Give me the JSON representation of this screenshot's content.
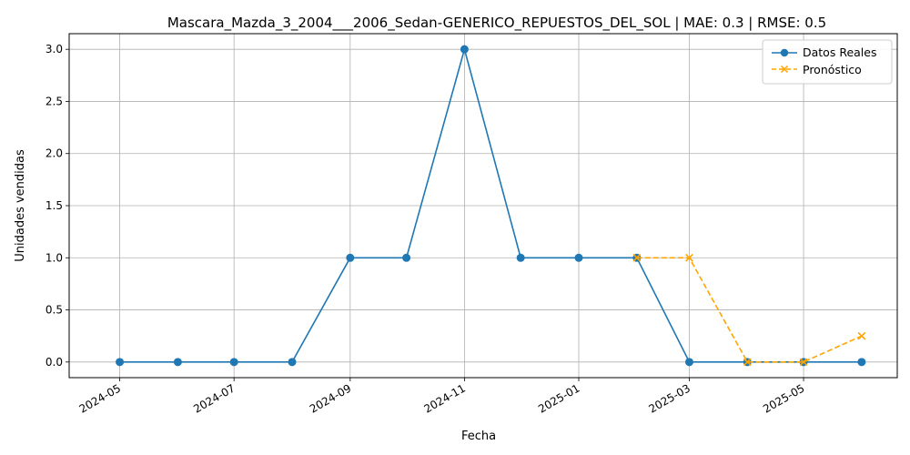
{
  "chart_data": {
    "type": "line",
    "title": "Mascara_Mazda_3_2004___2006_Sedan-GENERICO_REPUESTOS_DEL_SOL | MAE: 0.3 | RMSE: 0.5",
    "xlabel": "Fecha",
    "ylabel": "Unidades vendidas",
    "xlim": [
      "2024-04-04",
      "2025-06-20"
    ],
    "ylim": [
      -0.15,
      3.15
    ],
    "x_ticks": [
      "2024-05",
      "2024-07",
      "2024-09",
      "2024-11",
      "2025-01",
      "2025-03",
      "2025-05"
    ],
    "y_ticks": [
      "0.0",
      "0.5",
      "1.0",
      "1.5",
      "2.0",
      "2.5",
      "3.0"
    ],
    "y_tick_values": [
      0,
      0.5,
      1.0,
      1.5,
      2.0,
      2.5,
      3.0
    ],
    "grid": true,
    "legend_position": "top-right",
    "series": [
      {
        "name": "Datos Reales",
        "color": "#1f77b4",
        "marker": "circle",
        "linestyle": "solid",
        "x": [
          "2024-05-01",
          "2024-06-01",
          "2024-07-01",
          "2024-08-01",
          "2024-09-01",
          "2024-10-01",
          "2024-11-01",
          "2024-12-01",
          "2025-01-01",
          "2025-02-01",
          "2025-03-01",
          "2025-04-01",
          "2025-05-01",
          "2025-06-01"
        ],
        "y": [
          0,
          0,
          0,
          0,
          1,
          1,
          3,
          1,
          1,
          1,
          0,
          0,
          0,
          0
        ]
      },
      {
        "name": "Pronóstico",
        "color": "#ffa500",
        "marker": "x",
        "linestyle": "dashed",
        "x": [
          "2025-02-01",
          "2025-03-01",
          "2025-04-01",
          "2025-05-01",
          "2025-06-01"
        ],
        "y": [
          1.0,
          1.0,
          0.0,
          0.0,
          0.25
        ]
      }
    ]
  }
}
